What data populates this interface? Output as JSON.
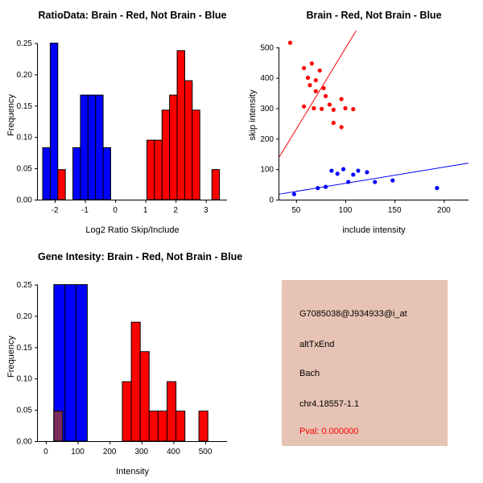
{
  "colors": {
    "red": "#FF0000",
    "blue": "#0000FF",
    "maroon": "#7D2B5A",
    "axis": "#000000",
    "info_bg": "#E6C3B4",
    "pval_text": "#FF0000"
  },
  "chart_data": [
    {
      "type": "bar",
      "title": "RatioData: Brain - Red, Not Brain - Blue",
      "xlabel": "Log2 Ratio Skip/Include",
      "ylabel": "Frequency",
      "xlim": [
        -2.56,
        3.7
      ],
      "ylim": [
        0,
        0.27
      ],
      "grid": false,
      "xticks": [
        {
          "v": -2,
          "l": "-2"
        },
        {
          "v": -1,
          "l": "-1"
        },
        {
          "v": 0,
          "l": "0"
        },
        {
          "v": 1,
          "l": "1"
        },
        {
          "v": 2,
          "l": "2"
        },
        {
          "v": 3,
          "l": "3"
        }
      ],
      "yticks": [
        {
          "v": 0,
          "l": "0.00"
        },
        {
          "v": 0.05,
          "l": "0.05"
        },
        {
          "v": 0.1,
          "l": "0.10"
        },
        {
          "v": 0.15,
          "l": "0.15"
        },
        {
          "v": 0.2,
          "l": "0.20"
        },
        {
          "v": 0.25,
          "l": "0.25"
        }
      ],
      "bin_width": 0.25,
      "bars": [
        {
          "x": -2.4,
          "h": 0.083,
          "color": "blue"
        },
        {
          "x": -2.15,
          "h": 0.25,
          "color": "blue"
        },
        {
          "x": -1.9,
          "h": 0.048,
          "color": "red"
        },
        {
          "x": -1.4,
          "h": 0.083,
          "color": "blue"
        },
        {
          "x": -1.15,
          "h": 0.167,
          "color": "blue"
        },
        {
          "x": -0.9,
          "h": 0.167,
          "color": "blue"
        },
        {
          "x": -0.65,
          "h": 0.167,
          "color": "blue"
        },
        {
          "x": -0.4,
          "h": 0.083,
          "color": "blue"
        },
        {
          "x": 1.05,
          "h": 0.095,
          "color": "red"
        },
        {
          "x": 1.3,
          "h": 0.095,
          "color": "red"
        },
        {
          "x": 1.55,
          "h": 0.143,
          "color": "red"
        },
        {
          "x": 1.8,
          "h": 0.167,
          "color": "red"
        },
        {
          "x": 2.05,
          "h": 0.238,
          "color": "red"
        },
        {
          "x": 2.3,
          "h": 0.19,
          "color": "red"
        },
        {
          "x": 2.55,
          "h": 0.143,
          "color": "red"
        },
        {
          "x": 3.2,
          "h": 0.048,
          "color": "red"
        }
      ]
    },
    {
      "type": "scatter",
      "title": "Brain - Red, Not Brain - Blue",
      "xlabel": "include intensity",
      "ylabel": "skip intensity",
      "xlim": [
        33,
        225
      ],
      "ylim": [
        0,
        555
      ],
      "grid": false,
      "xticks": [
        {
          "v": 50,
          "l": "50"
        },
        {
          "v": 100,
          "l": "100"
        },
        {
          "v": 150,
          "l": "150"
        },
        {
          "v": 200,
          "l": "200"
        }
      ],
      "yticks": [
        {
          "v": 0,
          "l": "0"
        },
        {
          "v": 100,
          "l": "100"
        },
        {
          "v": 200,
          "l": "200"
        },
        {
          "v": 300,
          "l": "300"
        },
        {
          "v": 400,
          "l": "400"
        },
        {
          "v": 500,
          "l": "500"
        }
      ],
      "series": [
        {
          "name": "brain",
          "color": "red",
          "line": [
            [
              33,
              140
            ],
            [
              111,
              555
            ]
          ],
          "points": [
            [
              44,
              515
            ],
            [
              58,
              432
            ],
            [
              66,
              447
            ],
            [
              62,
              400
            ],
            [
              70,
              392
            ],
            [
              74,
              424
            ],
            [
              64,
              376
            ],
            [
              70,
              356
            ],
            [
              78,
              366
            ],
            [
              80,
              340
            ],
            [
              58,
              306
            ],
            [
              68,
              300
            ],
            [
              76,
              298
            ],
            [
              84,
              312
            ],
            [
              88,
              295
            ],
            [
              96,
              330
            ],
            [
              100,
              300
            ],
            [
              108,
              297
            ],
            [
              88,
              252
            ],
            [
              96,
              238
            ]
          ]
        },
        {
          "name": "not-brain",
          "color": "blue",
          "line": [
            [
              33,
              18
            ],
            [
              225,
              120
            ]
          ],
          "points": [
            [
              48,
              18
            ],
            [
              72,
              38
            ],
            [
              80,
              42
            ],
            [
              86,
              95
            ],
            [
              92,
              85
            ],
            [
              98,
              100
            ],
            [
              103,
              58
            ],
            [
              108,
              82
            ],
            [
              113,
              95
            ],
            [
              122,
              90
            ],
            [
              130,
              58
            ],
            [
              148,
              63
            ],
            [
              193,
              38
            ]
          ]
        }
      ]
    },
    {
      "type": "bar",
      "title": "Gene Intesity: Brain - Red, Not Brain - Blue",
      "xlabel": "Intensity",
      "ylabel": "Frequency",
      "xlim": [
        -25,
        568
      ],
      "ylim": [
        0,
        0.27
      ],
      "grid": false,
      "xticks": [
        {
          "v": 0,
          "l": "0"
        },
        {
          "v": 100,
          "l": "100"
        },
        {
          "v": 200,
          "l": "200"
        },
        {
          "v": 300,
          "l": "300"
        },
        {
          "v": 400,
          "l": "400"
        },
        {
          "v": 500,
          "l": "500"
        }
      ],
      "yticks": [
        {
          "v": 0,
          "l": "0.00"
        },
        {
          "v": 0.05,
          "l": "0.05"
        },
        {
          "v": 0.1,
          "l": "0.10"
        },
        {
          "v": 0.15,
          "l": "0.15"
        },
        {
          "v": 0.2,
          "l": "0.20"
        },
        {
          "v": 0.25,
          "l": "0.25"
        }
      ],
      "bin_width": 28,
      "bars": [
        {
          "x": 25,
          "w": 35,
          "h": 0.25,
          "color": "blue"
        },
        {
          "x": 60,
          "w": 35,
          "h": 0.25,
          "color": "blue"
        },
        {
          "x": 95,
          "w": 35,
          "h": 0.25,
          "color": "blue"
        },
        {
          "x": 25,
          "w": 28,
          "h": 0.048,
          "color": "maroon"
        },
        {
          "x": 240,
          "h": 0.095,
          "color": "red"
        },
        {
          "x": 268,
          "h": 0.19,
          "color": "red"
        },
        {
          "x": 296,
          "h": 0.143,
          "color": "red"
        },
        {
          "x": 324,
          "h": 0.048,
          "color": "red"
        },
        {
          "x": 352,
          "h": 0.048,
          "color": "red"
        },
        {
          "x": 380,
          "h": 0.095,
          "color": "red"
        },
        {
          "x": 408,
          "h": 0.048,
          "color": "red"
        },
        {
          "x": 480,
          "h": 0.048,
          "color": "red"
        }
      ]
    }
  ],
  "info_box": {
    "lines": [
      "G7085038@J934933@i_at",
      "altTxEnd",
      "Bach",
      "chr4.18557-1.1"
    ],
    "pval_line": "Pval: 0.000000"
  }
}
